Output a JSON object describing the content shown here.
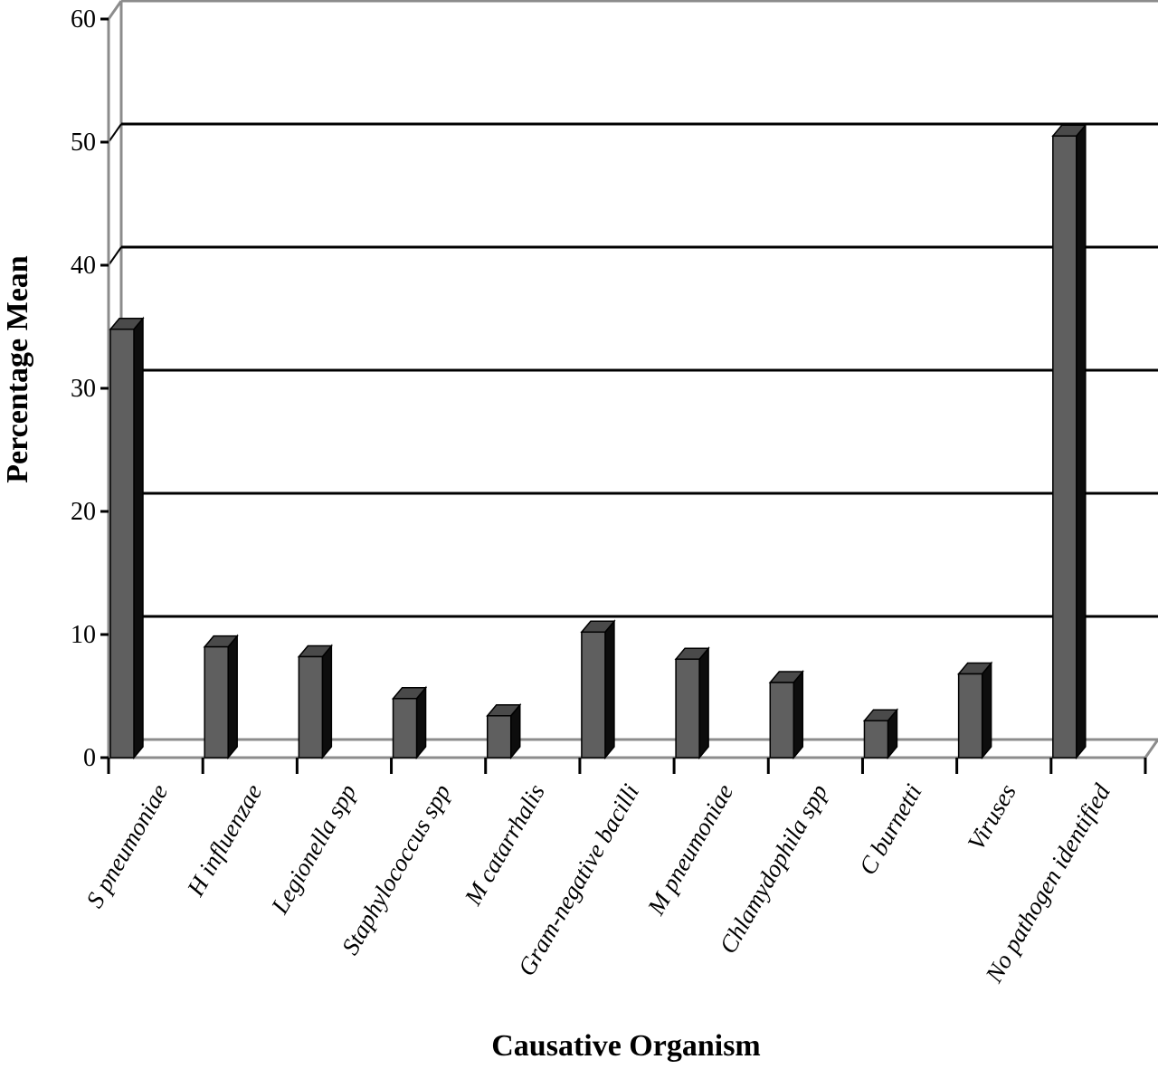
{
  "chart_data": {
    "type": "bar",
    "title": "",
    "xlabel": "Causative Organism",
    "ylabel": "Percentage  Mean",
    "ylim": [
      0,
      60
    ],
    "yticks": [
      0,
      10,
      20,
      30,
      40,
      50,
      60
    ],
    "grid": true,
    "legend": "none",
    "categories": [
      "S pneumoniae",
      "H influenzae",
      "Legionella spp",
      "Staphylococcus spp",
      "M catarrhalis",
      "Gram-negative bacilli",
      "M pneumoniae",
      "Chlamydophila spp",
      "C burnetti",
      "Viruses",
      "No pathogen identified"
    ],
    "values": [
      34.8,
      9.0,
      8.2,
      4.8,
      3.4,
      10.2,
      8.0,
      6.1,
      3.0,
      6.8,
      50.5
    ],
    "colors": {
      "bar_front": "#5f5f5f",
      "bar_top": "#4a4a4a",
      "bar_side": "#0d0d0d",
      "axis": "#8c8c8c",
      "grid": "#000000"
    }
  }
}
